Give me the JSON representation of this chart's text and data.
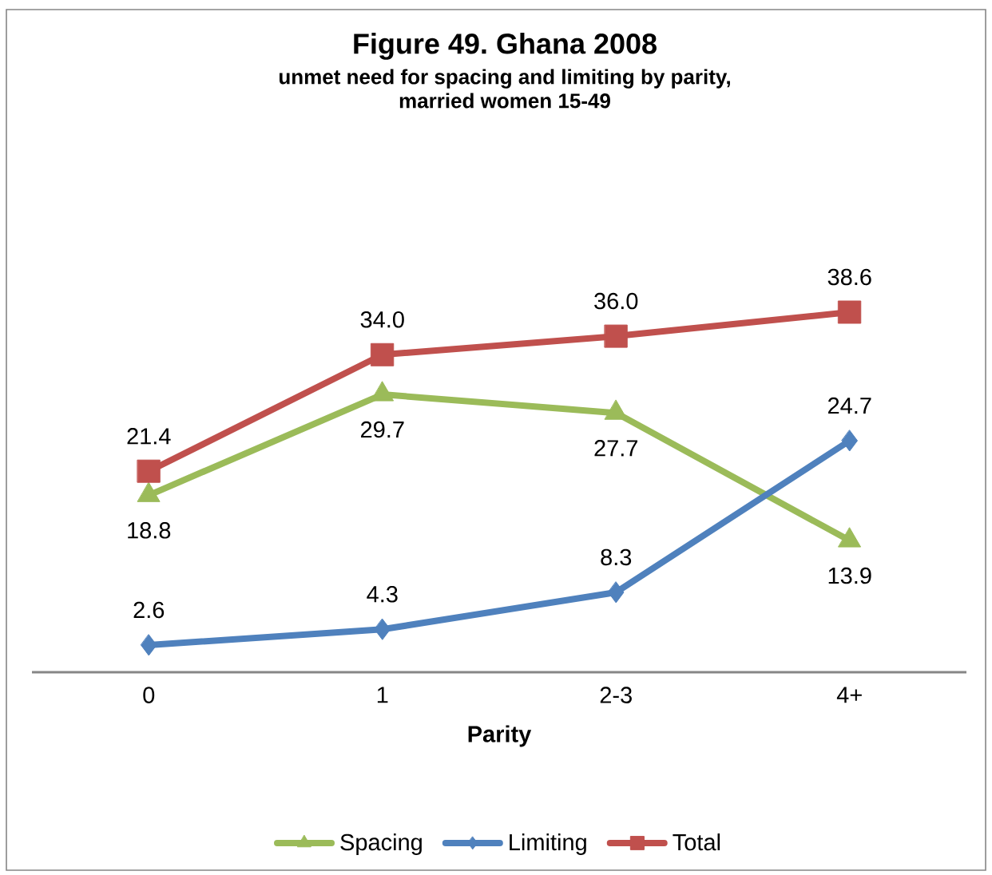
{
  "chart_data": {
    "type": "line",
    "title": "Figure 49. Ghana 2008",
    "subtitle": "unmet need for spacing and limiting by parity, married women 15-49",
    "xlabel": "Parity",
    "categories": [
      "0",
      "1",
      "2-3",
      "4+"
    ],
    "series": [
      {
        "name": "Spacing",
        "color": "#9bbb59",
        "marker": "triangle",
        "values": [
          18.8,
          29.7,
          27.7,
          13.9
        ],
        "value_labels": [
          "18.8",
          "29.7",
          "27.7",
          "13.9"
        ]
      },
      {
        "name": "Limiting",
        "color": "#4f81bd",
        "marker": "diamond",
        "values": [
          2.6,
          4.3,
          8.3,
          24.7
        ],
        "value_labels": [
          "2.6",
          "4.3",
          "8.3",
          "24.7"
        ]
      },
      {
        "name": "Total",
        "color": "#c0504d",
        "marker": "square",
        "values": [
          21.4,
          34.0,
          36.0,
          38.6
        ],
        "value_labels": [
          "21.4",
          "34.0",
          "36.0",
          "38.6"
        ]
      }
    ],
    "legend": "bottom",
    "tick_labels": "x",
    "line_style": "solid"
  }
}
